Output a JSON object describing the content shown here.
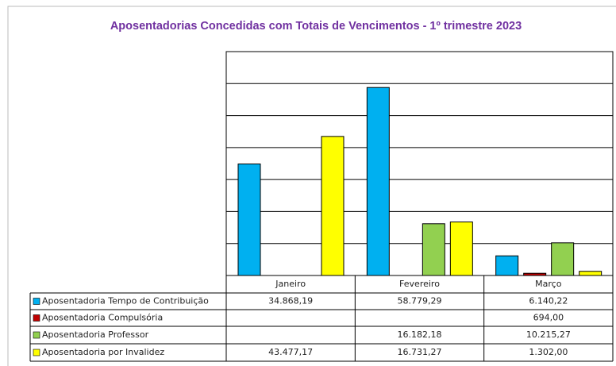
{
  "chart_data": {
    "type": "bar",
    "title": "Aposentadorias Concedidas com Totais de Vencimentos - 1º trimestre 2023",
    "categories": [
      "Janeiro",
      "Fevereiro",
      "Março"
    ],
    "series": [
      {
        "name": "Aposentadoria Tempo de Contribuição",
        "color": "#00b0f0",
        "values": [
          34868.19,
          58779.29,
          6140.22
        ],
        "value_labels": [
          "34.868,19",
          "58.779,29",
          "6.140,22"
        ]
      },
      {
        "name": "Aposentadoria Compulsória",
        "color": "#c00000",
        "values": [
          null,
          null,
          694.0
        ],
        "value_labels": [
          null,
          null,
          "694,00"
        ]
      },
      {
        "name": "Aposentadoria Professor",
        "color": "#92d050",
        "values": [
          null,
          16182.18,
          10215.27
        ],
        "value_labels": [
          null,
          "16.182,18",
          "10.215,27"
        ]
      },
      {
        "name": "Aposentadoria por Invalidez",
        "color": "#ffff00",
        "values": [
          43477.17,
          16731.27,
          1302.0
        ],
        "value_labels": [
          "43.477,17",
          "16.731,27",
          "1.302,00"
        ]
      }
    ],
    "ylim": [
      0,
      70000
    ],
    "yticks": [
      0,
      10000,
      20000,
      30000,
      40000,
      50000,
      60000,
      70000
    ],
    "grid": true
  }
}
